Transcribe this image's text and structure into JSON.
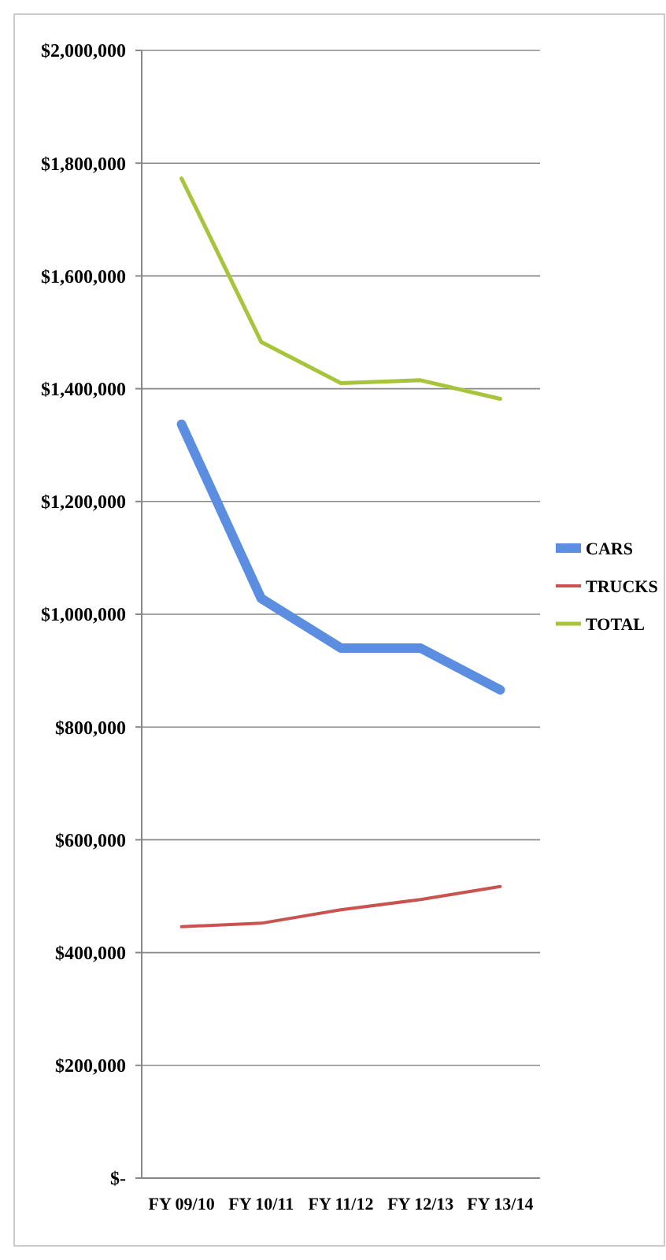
{
  "chart_data": {
    "type": "line",
    "categories": [
      "FY 09/10",
      "FY 10/11",
      "FY 11/12",
      "FY 12/13",
      "FY 13/14"
    ],
    "series": [
      {
        "name": "CARS",
        "color": "#5b8de0",
        "values": [
          1337000,
          1028000,
          940000,
          940000,
          866000
        ]
      },
      {
        "name": "TRUCKS",
        "color": "#c9534f",
        "values": [
          446000,
          452000,
          476000,
          494000,
          517000
        ]
      },
      {
        "name": "TOTAL",
        "color": "#a8c43c",
        "values": [
          1773000,
          1483000,
          1410000,
          1415000,
          1382000
        ]
      }
    ],
    "ylim": [
      0,
      2000000
    ],
    "yticks": [
      {
        "value": 0,
        "label": "$-"
      },
      {
        "value": 200000,
        "label": "$200,000"
      },
      {
        "value": 400000,
        "label": "$400,000"
      },
      {
        "value": 600000,
        "label": "$600,000"
      },
      {
        "value": 800000,
        "label": "$800,000"
      },
      {
        "value": 1000000,
        "label": "$1,000,000"
      },
      {
        "value": 1200000,
        "label": "$1,200,000"
      },
      {
        "value": 1400000,
        "label": "$1,400,000"
      },
      {
        "value": 1600000,
        "label": "$1,600,000"
      },
      {
        "value": 1800000,
        "label": "$1,800,000"
      },
      {
        "value": 2000000,
        "label": "$2,000,000"
      }
    ],
    "grid": "y",
    "legend": "right",
    "marker": "none",
    "line_style": "solid"
  }
}
